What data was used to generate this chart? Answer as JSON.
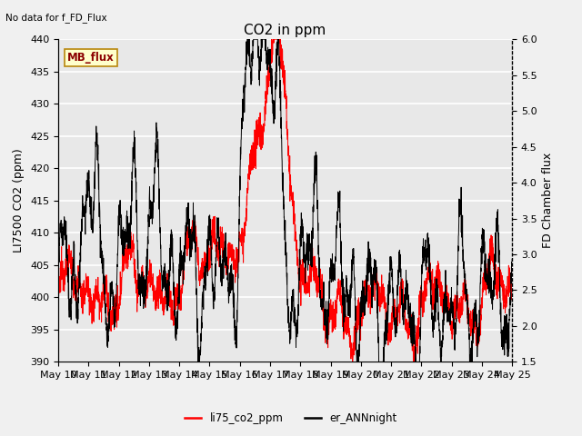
{
  "title": "CO2 in ppm",
  "ylabel_left": "LI7500 CO2 (ppm)",
  "ylabel_right": "FD Chamber flux",
  "text_no_data": "No data for f_FD_Flux",
  "mb_flux_label": "MB_flux",
  "ylim_left": [
    390,
    440
  ],
  "ylim_right": [
    1.5,
    6.0
  ],
  "yticks_left": [
    390,
    395,
    400,
    405,
    410,
    415,
    420,
    425,
    430,
    435,
    440
  ],
  "yticks_right": [
    1.5,
    2.0,
    2.5,
    3.0,
    3.5,
    4.0,
    4.5,
    5.0,
    5.5,
    6.0
  ],
  "xtick_labels": [
    "May 10",
    "May 11",
    "May 12",
    "May 13",
    "May 14",
    "May 15",
    "May 16",
    "May 17",
    "May 18",
    "May 19",
    "May 20",
    "May 21",
    "May 22",
    "May 23",
    "May 24",
    "May 25"
  ],
  "legend_labels": [
    "li75_co2_ppm",
    "er_ANNnight"
  ],
  "line_colors_red": "#ff0000",
  "line_colors_black": "#000000",
  "background_color": "#e8e8e8",
  "grid_color": "#ffffff",
  "fig_background": "#f0f0f0",
  "title_fontsize": 11,
  "axis_label_fontsize": 9,
  "tick_fontsize": 8,
  "linewidth": 0.7
}
